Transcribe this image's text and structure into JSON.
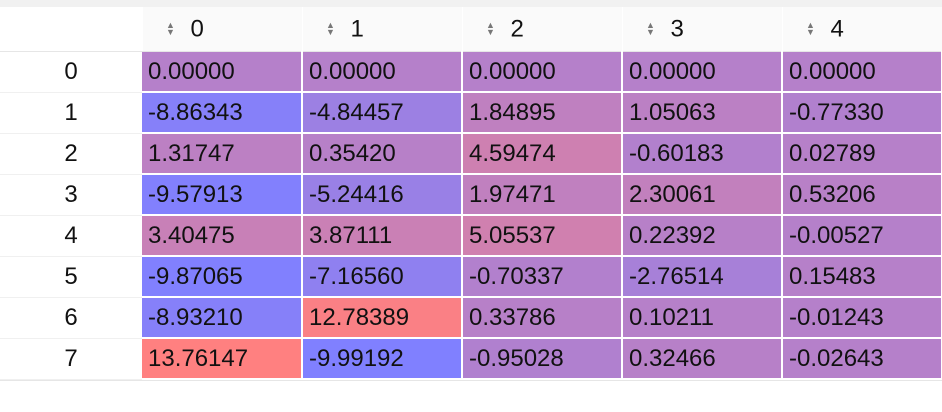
{
  "table": {
    "columns": [
      "0",
      "1",
      "2",
      "3",
      "4"
    ],
    "sort_icon": "sort-arrows-icon",
    "rows": [
      {
        "index": "0",
        "values": [
          "0.00000",
          "0.00000",
          "0.00000",
          "0.00000",
          "0.00000"
        ]
      },
      {
        "index": "1",
        "values": [
          "-8.86343",
          "-4.84457",
          "1.84895",
          "1.05063",
          "-0.77330"
        ]
      },
      {
        "index": "2",
        "values": [
          "1.31747",
          "0.35420",
          "4.59474",
          "-0.60183",
          "0.02789"
        ]
      },
      {
        "index": "3",
        "values": [
          "-9.57913",
          "-5.24416",
          "1.97471",
          "2.30061",
          "0.53206"
        ]
      },
      {
        "index": "4",
        "values": [
          "3.40475",
          "3.87111",
          "5.05537",
          "0.22392",
          "-0.00527"
        ]
      },
      {
        "index": "5",
        "values": [
          "-9.87065",
          "-7.16560",
          "-0.70337",
          "-2.76514",
          "0.15483"
        ]
      },
      {
        "index": "6",
        "values": [
          "-8.93210",
          "12.78389",
          "0.33786",
          "0.10211",
          "-0.01243"
        ]
      },
      {
        "index": "7",
        "values": [
          "13.76147",
          "-9.99192",
          "-0.95028",
          "0.32466",
          "-0.02643"
        ]
      }
    ],
    "color_scale": {
      "low": "#8080ff",
      "high": "#ff8080",
      "min": -9.99192,
      "max": 13.76147
    }
  }
}
